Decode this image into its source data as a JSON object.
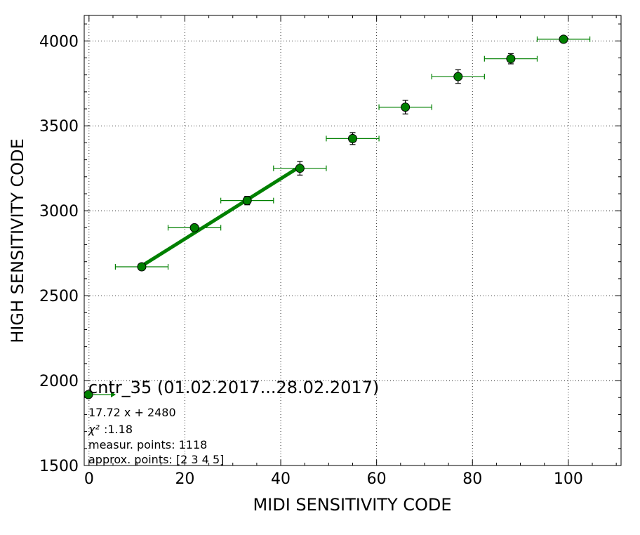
{
  "chart_data": {
    "type": "scatter",
    "title": "",
    "xlabel": "MIDI SENSITIVITY CODE",
    "ylabel": "HIGH SENSITIVITY CODE",
    "xlim": [
      -1,
      111
    ],
    "ylim": [
      1500,
      4150
    ],
    "x_ticks": [
      0,
      20,
      40,
      60,
      80,
      100
    ],
    "y_ticks": [
      1500,
      2000,
      2500,
      3000,
      3500,
      4000
    ],
    "grid": true,
    "colors": {
      "series": "#008000",
      "marker_edge": "#000000"
    },
    "points": [
      {
        "x": 11,
        "y": 2670,
        "xerr": 5.5,
        "yerr": 15
      },
      {
        "x": 22,
        "y": 2900,
        "xerr": 5.5,
        "yerr": 20
      },
      {
        "x": 33,
        "y": 3060,
        "xerr": 5.5,
        "yerr": 25
      },
      {
        "x": 44,
        "y": 3250,
        "xerr": 5.5,
        "yerr": 40
      },
      {
        "x": 55,
        "y": 3425,
        "xerr": 5.5,
        "yerr": 35
      },
      {
        "x": 66,
        "y": 3610,
        "xerr": 5.5,
        "yerr": 40
      },
      {
        "x": 77,
        "y": 3790,
        "xerr": 5.5,
        "yerr": 40
      },
      {
        "x": 88,
        "y": 3895,
        "xerr": 5.5,
        "yerr": 30
      },
      {
        "x": 99,
        "y": 4010,
        "xerr": 5.5,
        "yerr": 15
      }
    ],
    "fit_line": {
      "x_start": 11,
      "x_end": 44,
      "slope": 17.72,
      "intercept": 2480
    },
    "legend": {
      "placement": "lower-left",
      "title": "cntr_35 (01.02.2017...28.02.2017)",
      "equation": "17.72 x + 2480",
      "chi2_label": "χ²",
      "chi2_value": ":1.18",
      "measurement_points": "measur. points: 1118",
      "approx_points": "approx. points: [2 3 4 5]"
    }
  }
}
